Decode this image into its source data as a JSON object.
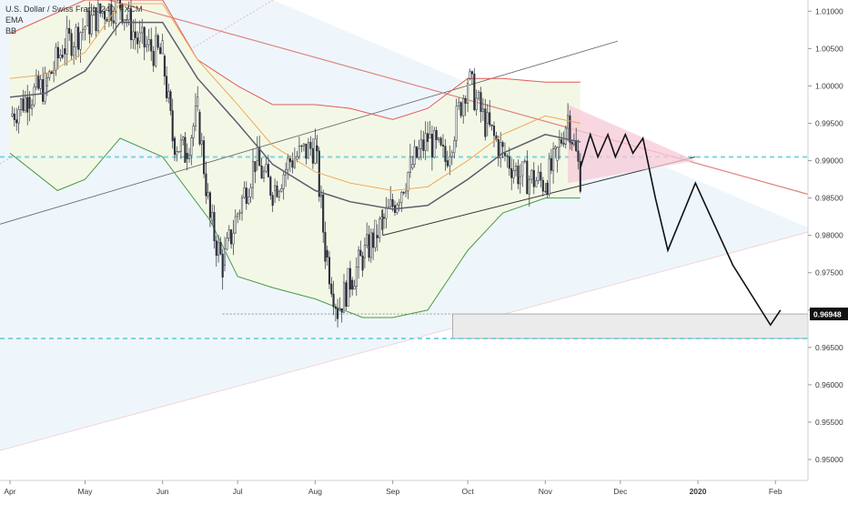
{
  "legend": {
    "symbol": "U.S. Dollar / Swiss Franc, 240, FXCM",
    "ema_label": "EMA",
    "bb_label": "BB"
  },
  "chart_data": {
    "type": "candlestick",
    "x_tick_labels": [
      "Apr",
      "May",
      "Jun",
      "Jul",
      "Aug",
      "Sep",
      "Oct",
      "Nov",
      "Dec",
      "2020",
      "Feb"
    ],
    "y_tick_labels": [
      "1.01000",
      "1.00500",
      "1.00000",
      "0.99500",
      "0.99000",
      "0.98500",
      "0.98000",
      "0.97500",
      "0.97000",
      "0.96500",
      "0.96000",
      "0.95500",
      "0.95000"
    ],
    "y_ticks": [
      1.01,
      1.005,
      1.0,
      0.995,
      0.99,
      0.985,
      0.98,
      0.975,
      0.97,
      0.965,
      0.96,
      0.955,
      0.95
    ],
    "ylim": [
      0.9472,
      1.0115
    ],
    "price_label": "0.96948",
    "current_price": 0.96948,
    "horizontal_levels": [
      0.9905,
      0.9662
    ],
    "ema_path": [
      [
        "2019-04-01",
        0.9985
      ],
      [
        "2019-04-15",
        0.999
      ],
      [
        "2019-05-01",
        1.002
      ],
      [
        "2019-05-15",
        1.0085
      ],
      [
        "2019-06-01",
        1.0085
      ],
      [
        "2019-06-15",
        1.001
      ],
      [
        "2019-07-01",
        0.995
      ],
      [
        "2019-07-15",
        0.9895
      ],
      [
        "2019-08-01",
        0.986
      ],
      [
        "2019-08-15",
        0.9845
      ],
      [
        "2019-09-01",
        0.9835
      ],
      [
        "2019-09-15",
        0.984
      ],
      [
        "2019-10-01",
        0.9875
      ],
      [
        "2019-10-15",
        0.991
      ],
      [
        "2019-11-01",
        0.9935
      ],
      [
        "2019-11-15",
        0.9925
      ]
    ],
    "bollinger_upper": [
      [
        "2019-04-01",
        1.007
      ],
      [
        "2019-05-01",
        1.0115
      ],
      [
        "2019-06-01",
        1.0115
      ],
      [
        "2019-06-15",
        1.0035
      ],
      [
        "2019-07-01",
        1.0
      ],
      [
        "2019-07-15",
        0.9975
      ],
      [
        "2019-08-01",
        0.9975
      ],
      [
        "2019-08-15",
        0.997
      ],
      [
        "2019-09-01",
        0.9955
      ],
      [
        "2019-09-15",
        0.997
      ],
      [
        "2019-10-01",
        1.001
      ],
      [
        "2019-10-15",
        1.001
      ],
      [
        "2019-11-01",
        1.0005
      ],
      [
        "2019-11-15",
        1.0005
      ]
    ],
    "bollinger_lower": [
      [
        "2019-04-01",
        0.991
      ],
      [
        "2019-04-20",
        0.986
      ],
      [
        "2019-05-01",
        0.9875
      ],
      [
        "2019-05-15",
        0.993
      ],
      [
        "2019-06-01",
        0.9905
      ],
      [
        "2019-06-20",
        0.982
      ],
      [
        "2019-07-01",
        0.9745
      ],
      [
        "2019-07-15",
        0.973
      ],
      [
        "2019-08-01",
        0.9715
      ],
      [
        "2019-08-20",
        0.969
      ],
      [
        "2019-09-01",
        0.969
      ],
      [
        "2019-09-15",
        0.97
      ],
      [
        "2019-10-01",
        0.978
      ],
      [
        "2019-10-15",
        0.983
      ],
      [
        "2019-11-01",
        0.985
      ],
      [
        "2019-11-15",
        0.985
      ]
    ],
    "price_path": [
      [
        "2019-04-01",
        0.996
      ],
      [
        "2019-04-08",
        0.9985
      ],
      [
        "2019-04-15",
        1.0
      ],
      [
        "2019-04-22",
        1.005
      ],
      [
        "2019-05-01",
        1.008
      ],
      [
        "2019-05-08",
        1.01
      ],
      [
        "2019-05-15",
        1.011
      ],
      [
        "2019-05-22",
        1.006
      ],
      [
        "2019-06-01",
        1.004
      ],
      [
        "2019-06-05",
        0.993
      ],
      [
        "2019-06-10",
        0.991
      ],
      [
        "2019-06-15",
        0.9965
      ],
      [
        "2019-06-20",
        0.982
      ],
      [
        "2019-06-25",
        0.976
      ],
      [
        "2019-07-01",
        0.983
      ],
      [
        "2019-07-08",
        0.99
      ],
      [
        "2019-07-15",
        0.986
      ],
      [
        "2019-07-22",
        0.99
      ],
      [
        "2019-08-01",
        0.992
      ],
      [
        "2019-08-05",
        0.978
      ],
      [
        "2019-08-10",
        0.97
      ],
      [
        "2019-08-15",
        0.974
      ],
      [
        "2019-08-20",
        0.977
      ],
      [
        "2019-08-25",
        0.98
      ],
      [
        "2019-09-01",
        0.984
      ],
      [
        "2019-09-08",
        0.989
      ],
      [
        "2019-09-15",
        0.993
      ],
      [
        "2019-09-22",
        0.99
      ],
      [
        "2019-10-01",
        1.001
      ],
      [
        "2019-10-08",
        0.995
      ],
      [
        "2019-10-15",
        0.991
      ],
      [
        "2019-10-22",
        0.988
      ],
      [
        "2019-11-01",
        0.987
      ],
      [
        "2019-11-05",
        0.99
      ],
      [
        "2019-11-10",
        0.996
      ],
      [
        "2019-11-15",
        0.988
      ]
    ],
    "projection_path": [
      [
        "2019-11-15",
        0.989
      ],
      [
        "2019-11-19",
        0.9935
      ],
      [
        "2019-11-22",
        0.9905
      ],
      [
        "2019-11-26",
        0.9935
      ],
      [
        "2019-11-29",
        0.9905
      ],
      [
        "2019-12-03",
        0.9935
      ],
      [
        "2019-12-06",
        0.991
      ],
      [
        "2019-12-10",
        0.993
      ],
      [
        "2019-12-15",
        0.985
      ],
      [
        "2019-12-20",
        0.978
      ],
      [
        "2019-12-31",
        0.987
      ],
      [
        "2020-01-15",
        0.976
      ],
      [
        "2020-01-30",
        0.968
      ],
      [
        "2020-02-03",
        0.97
      ]
    ],
    "triangle": [
      [
        "2019-11-10",
        0.9975
      ],
      [
        "2019-12-31",
        0.99
      ],
      [
        "2019-11-10",
        0.987
      ]
    ]
  },
  "colors": {
    "background": "#ffffff",
    "bb_fill": "#f3f8e6",
    "channel_fill": "#eef6fc",
    "bb_upper": "#e25b5b",
    "bb_lower": "#4a9a48",
    "ema": "#f0a24b",
    "ma": "#5e5e6e",
    "level": "#7fd4e2",
    "resistance": "#e0857f",
    "triangle_fill": "#f7c9d7",
    "candle": "#2a2f3a",
    "axis_text": "#3a3a3a"
  }
}
